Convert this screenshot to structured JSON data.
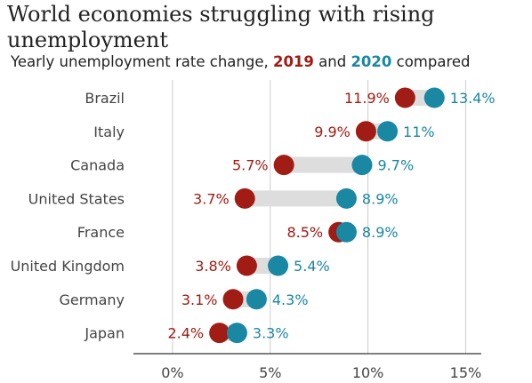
{
  "title": "World economies struggling with rising unemployment",
  "subtitle": {
    "prefix": "Yearly unemployment rate change,",
    "year1": "2019",
    "middle": "and",
    "year2": "2020",
    "suffix": "compared"
  },
  "colors": {
    "year1": "#a01c14",
    "year2": "#1a87a3",
    "connector": "#dddddd",
    "grid": "#cccccc",
    "axis": "#555555",
    "text": "#444444"
  },
  "chart_data": {
    "type": "dumbbell",
    "categories": [
      "Brazil",
      "Italy",
      "Canada",
      "United States",
      "France",
      "United Kingdom",
      "Germany",
      "Japan"
    ],
    "series": [
      {
        "name": "2019",
        "values": [
          11.9,
          9.9,
          5.7,
          3.7,
          8.5,
          3.8,
          3.1,
          2.4
        ],
        "labels": [
          "11.9%",
          "9.9%",
          "5.7%",
          "3.7%",
          "8.5%",
          "3.8%",
          "3.1%",
          "2.4%"
        ]
      },
      {
        "name": "2020",
        "values": [
          13.4,
          11,
          9.7,
          8.9,
          8.9,
          5.4,
          4.3,
          3.3
        ],
        "labels": [
          "13.4%",
          "11%",
          "9.7%",
          "8.9%",
          "8.9%",
          "5.4%",
          "4.3%",
          "3.3%"
        ]
      }
    ],
    "x_ticks": [
      0,
      5,
      10,
      15
    ],
    "x_tick_labels": [
      "0%",
      "5%",
      "10%",
      "15%"
    ],
    "xlim": [
      -2,
      15.8
    ],
    "grid": true
  }
}
